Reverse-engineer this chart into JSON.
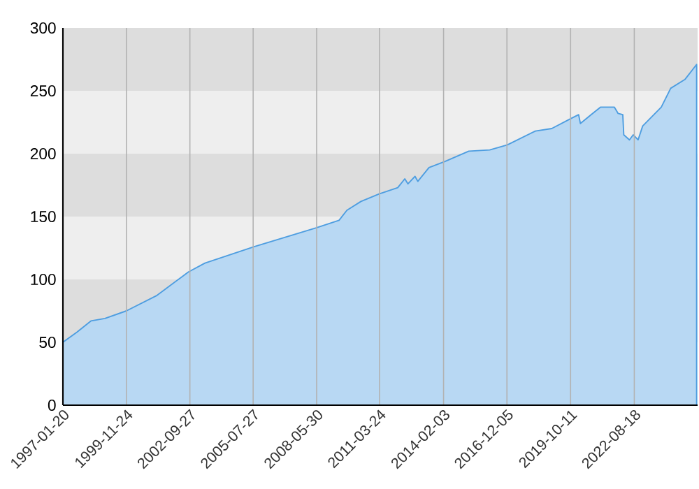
{
  "chart_data": {
    "type": "area",
    "x": [
      "1997-01-20",
      "1997-09-06",
      "1998-04-23",
      "1998-12-08",
      "1999-11-24",
      "2001-03-27",
      "2002-09-04",
      "2003-05-31",
      "2005-08-12",
      "2008-05-23",
      "2009-05-31",
      "2009-10-07",
      "2010-05-24",
      "2011-03-17",
      "2012-01-16",
      "2012-05-10",
      "2012-07-01",
      "2012-10-24",
      "2012-12-09",
      "2013-06-10",
      "2014-03-05",
      "2015-03-22",
      "2016-02-28",
      "2016-12-12",
      "2018-03-14",
      "2018-12-07",
      "2019-10-18",
      "2020-02-20",
      "2020-03-20",
      "2020-09-10",
      "2021-02-10",
      "2021-09-27",
      "2021-11-27",
      "2022-02-11",
      "2022-02-27",
      "2022-05-31",
      "2022-07-31",
      "2022-10-19",
      "2023-01-02",
      "2023-11-02",
      "2024-04-04",
      "2024-11-22",
      "2025-06-02"
    ],
    "series": [
      {
        "color": "#4d9de0",
        "values": [
          50,
          58,
          67,
          69,
          75,
          87,
          106,
          113,
          126,
          141,
          147,
          155,
          162,
          168,
          173,
          180,
          176,
          182,
          178,
          189,
          194,
          202,
          203,
          207,
          218,
          220,
          228,
          231,
          224,
          231,
          237,
          237,
          232,
          231,
          215,
          211,
          215,
          211,
          222,
          237,
          252,
          259,
          271
        ]
      }
    ],
    "xlim": [
      "1997-01-20",
      "2025-06-18"
    ],
    "xticks": [
      "1997-01-20",
      "1999-11-24",
      "2002-09-27",
      "2005-07-27",
      "2008-05-30",
      "2011-03-24",
      "2014-02-03",
      "2016-12-05",
      "2019-10-11",
      "2022-08-18"
    ],
    "ylim": [
      0,
      300
    ],
    "yticks": [
      0,
      50,
      100,
      150,
      200,
      250,
      300
    ],
    "grid": "x",
    "bands": [
      {
        "axis": "y",
        "from": 0,
        "to": 50,
        "color": "#eeeeee"
      },
      {
        "axis": "y",
        "from": 50,
        "to": 100,
        "color": "#dddddd"
      },
      {
        "axis": "y",
        "from": 100,
        "to": 150,
        "color": "#eeeeee"
      },
      {
        "axis": "y",
        "from": 150,
        "to": 200,
        "color": "#dddddd"
      },
      {
        "axis": "y",
        "from": 200,
        "to": 250,
        "color": "#eeeeee"
      },
      {
        "axis": "y",
        "from": 250,
        "to": 300,
        "color": "#dddddd"
      }
    ]
  }
}
